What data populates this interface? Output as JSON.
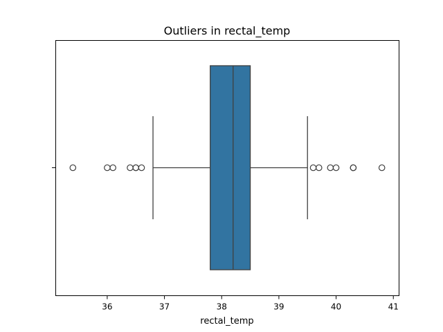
{
  "chart_data": {
    "type": "box",
    "title": "Outliers in rectal_temp",
    "xlabel": "rectal_temp",
    "ylabel": "",
    "xlim": [
      35.1,
      41.1
    ],
    "xticks": [
      36,
      37,
      38,
      39,
      40,
      41
    ],
    "xtick_labels": [
      "36",
      "37",
      "38",
      "39",
      "40",
      "41"
    ],
    "orientation": "horizontal",
    "grid": false,
    "box": {
      "whisker_low": 36.8,
      "q1": 37.8,
      "median": 38.2,
      "q3": 38.5,
      "whisker_high": 39.5,
      "color": "#3274a1"
    },
    "outliers": [
      35.4,
      36.0,
      36.1,
      36.4,
      36.5,
      36.5,
      36.6,
      39.6,
      39.7,
      39.9,
      40.0,
      40.3,
      40.3,
      40.8
    ]
  }
}
